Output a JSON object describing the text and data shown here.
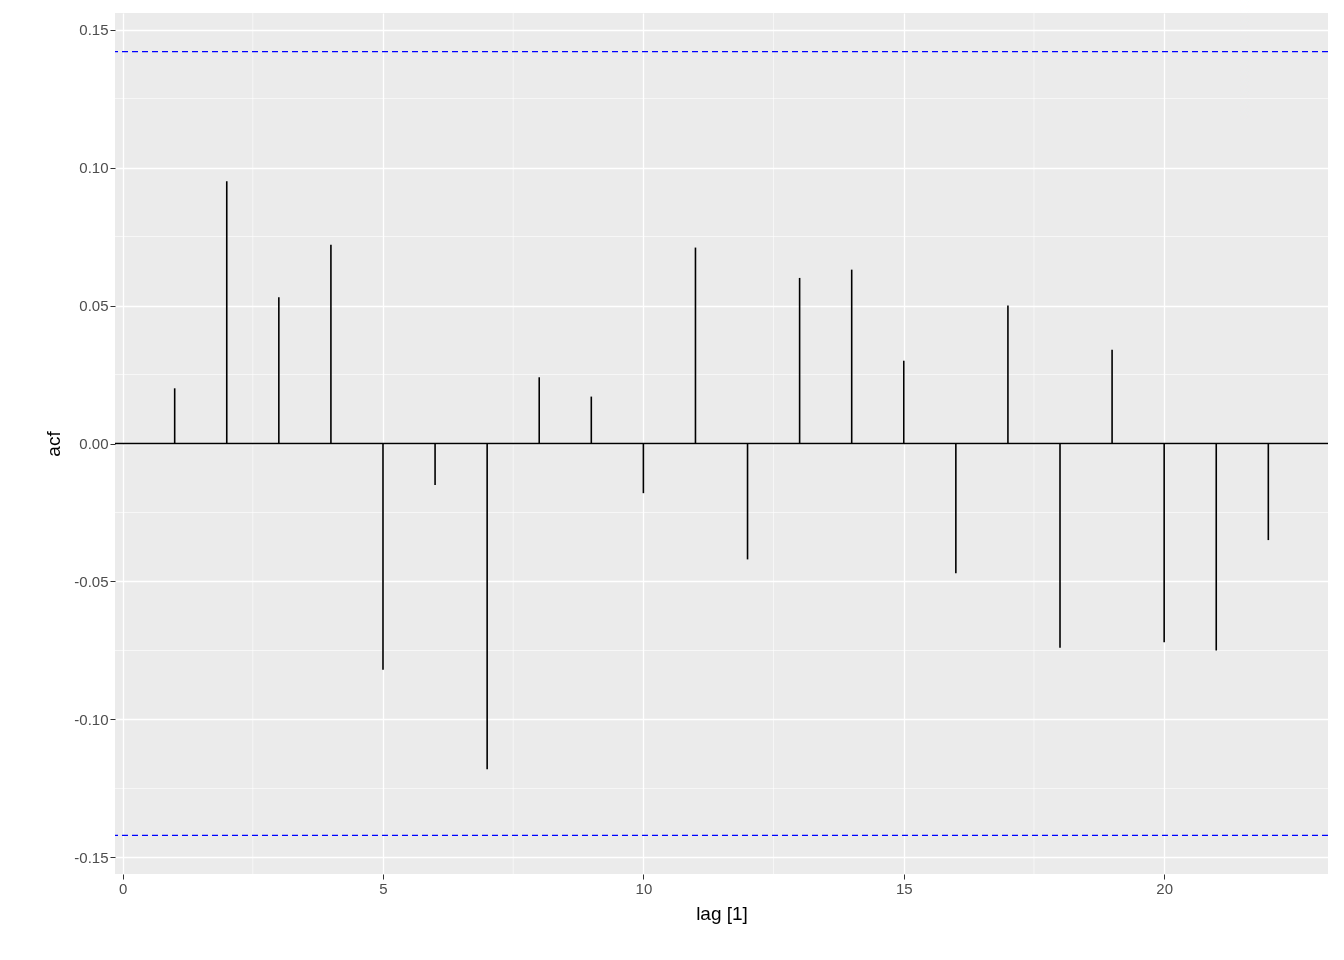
{
  "chart_data": {
    "type": "bar",
    "xlabel": "lag [1]",
    "ylabel": "acf",
    "x": [
      1,
      2,
      3,
      4,
      5,
      6,
      7,
      8,
      9,
      10,
      11,
      12,
      13,
      14,
      15,
      16,
      17,
      18,
      19,
      20,
      21,
      22
    ],
    "values": [
      0.02,
      0.095,
      0.053,
      0.072,
      -0.082,
      -0.015,
      -0.118,
      0.024,
      0.017,
      -0.018,
      0.071,
      -0.042,
      0.06,
      0.063,
      0.03,
      -0.047,
      0.05,
      -0.074,
      0.034,
      -0.072,
      -0.075,
      -0.035
    ],
    "color": "#000000",
    "xlim": [
      -0.05,
      23.05
    ],
    "xticks": [
      0,
      5,
      10,
      15,
      20
    ],
    "ylim": [
      -0.156,
      0.156
    ],
    "yticks": [
      {
        "value": -0.15,
        "label": "-0.15"
      },
      {
        "value": -0.1,
        "label": "-0.10"
      },
      {
        "value": -0.05,
        "label": "-0.05"
      },
      {
        "value": 0,
        "label": "0.00"
      },
      {
        "value": 0.05,
        "label": "0.05"
      },
      {
        "value": 0.1,
        "label": "0.10"
      },
      {
        "value": 0.15,
        "label": "0.15"
      }
    ],
    "ref_lines": [
      {
        "axis": "y",
        "value": 0,
        "color": "#000000",
        "line_style": "solid"
      },
      {
        "axis": "y",
        "value": 0.142,
        "color": "#0000ff",
        "line_style": "dashed"
      },
      {
        "axis": "y",
        "value": -0.142,
        "color": "#0000ff",
        "line_style": "dashed"
      }
    ],
    "grid": true
  }
}
